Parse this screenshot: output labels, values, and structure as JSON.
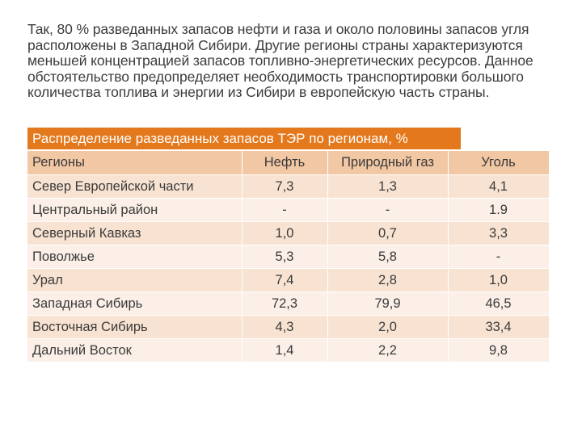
{
  "intro_lines": [
    "Так, 80 % разведанных запасов нефти и газа и около половины запасов угля",
    "расположены в Западной Сибири. Другие регионы страны характеризуются",
    "меньшей концентрацией запасов топливно-энергетических ресурсов. Данное",
    "обстоятельство предопределяет необходимость транспортировки большого",
    "количества топлива и энергии из Сибири в европейскую часть страны."
  ],
  "table": {
    "caption": "Распределение разведанных запасов ТЭР по регионам, %",
    "headers": [
      "Регионы",
      "Нефть",
      "Природный газ",
      "Уголь"
    ],
    "rows": [
      [
        "Север Европейской части",
        "7,3",
        "1,3",
        "4,1"
      ],
      [
        "Центральный район",
        "-",
        "-",
        "1.9"
      ],
      [
        "Северный Кавказ",
        "1,0",
        "0,7",
        "3,3"
      ],
      [
        "Поволжье",
        "5,3",
        "5,8",
        "-"
      ],
      [
        "Урал",
        "7,4",
        "2,8",
        "1,0"
      ],
      [
        "Западная Сибирь",
        "72,3",
        "79,9",
        "46,5"
      ],
      [
        "Восточная Сибирь",
        "4,3",
        "2,0",
        "33,4"
      ],
      [
        "Дальний Восток",
        "1,4",
        "2,2",
        "9,8"
      ]
    ]
  }
}
